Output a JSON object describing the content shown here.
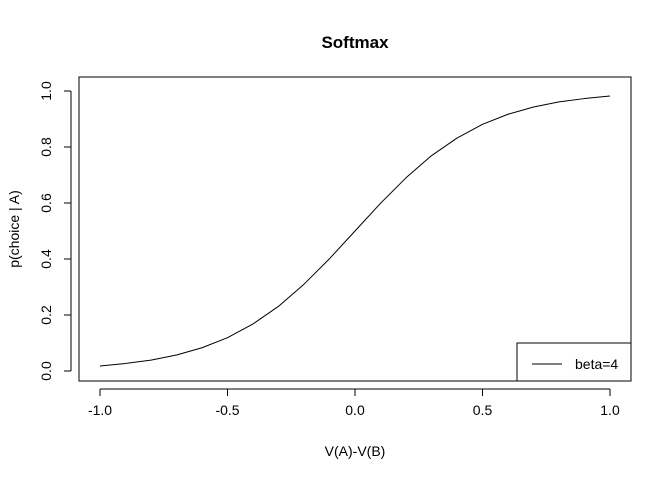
{
  "chart_data": {
    "type": "line",
    "title": "Softmax",
    "xlabel": "V(A)-V(B)",
    "ylabel": "p(choice | A)",
    "xlim": [
      -1.0,
      1.0
    ],
    "ylim": [
      0.0,
      1.0
    ],
    "x_ticks": [
      -1.0,
      -0.5,
      0.0,
      0.5,
      1.0
    ],
    "x_tick_labels": [
      "-1.0",
      "-0.5",
      "0.0",
      "0.5",
      "1.0"
    ],
    "y_ticks": [
      0.0,
      0.2,
      0.4,
      0.6,
      0.8,
      1.0
    ],
    "y_tick_labels": [
      "0.0",
      "0.2",
      "0.4",
      "0.6",
      "0.8",
      "1.0"
    ],
    "grid": false,
    "legend_position": "bottom-right",
    "series": [
      {
        "name": "beta=4",
        "color": "#000000",
        "x": [
          -1.0,
          -0.9,
          -0.8,
          -0.7,
          -0.6,
          -0.5,
          -0.4,
          -0.3,
          -0.2,
          -0.1,
          0.0,
          0.1,
          0.2,
          0.3,
          0.4,
          0.5,
          0.6,
          0.7,
          0.8,
          0.9,
          1.0
        ],
        "y": [
          0.018,
          0.027,
          0.039,
          0.057,
          0.083,
          0.119,
          0.168,
          0.231,
          0.31,
          0.401,
          0.5,
          0.599,
          0.69,
          0.769,
          0.832,
          0.881,
          0.917,
          0.943,
          0.961,
          0.973,
          0.982
        ]
      }
    ]
  }
}
